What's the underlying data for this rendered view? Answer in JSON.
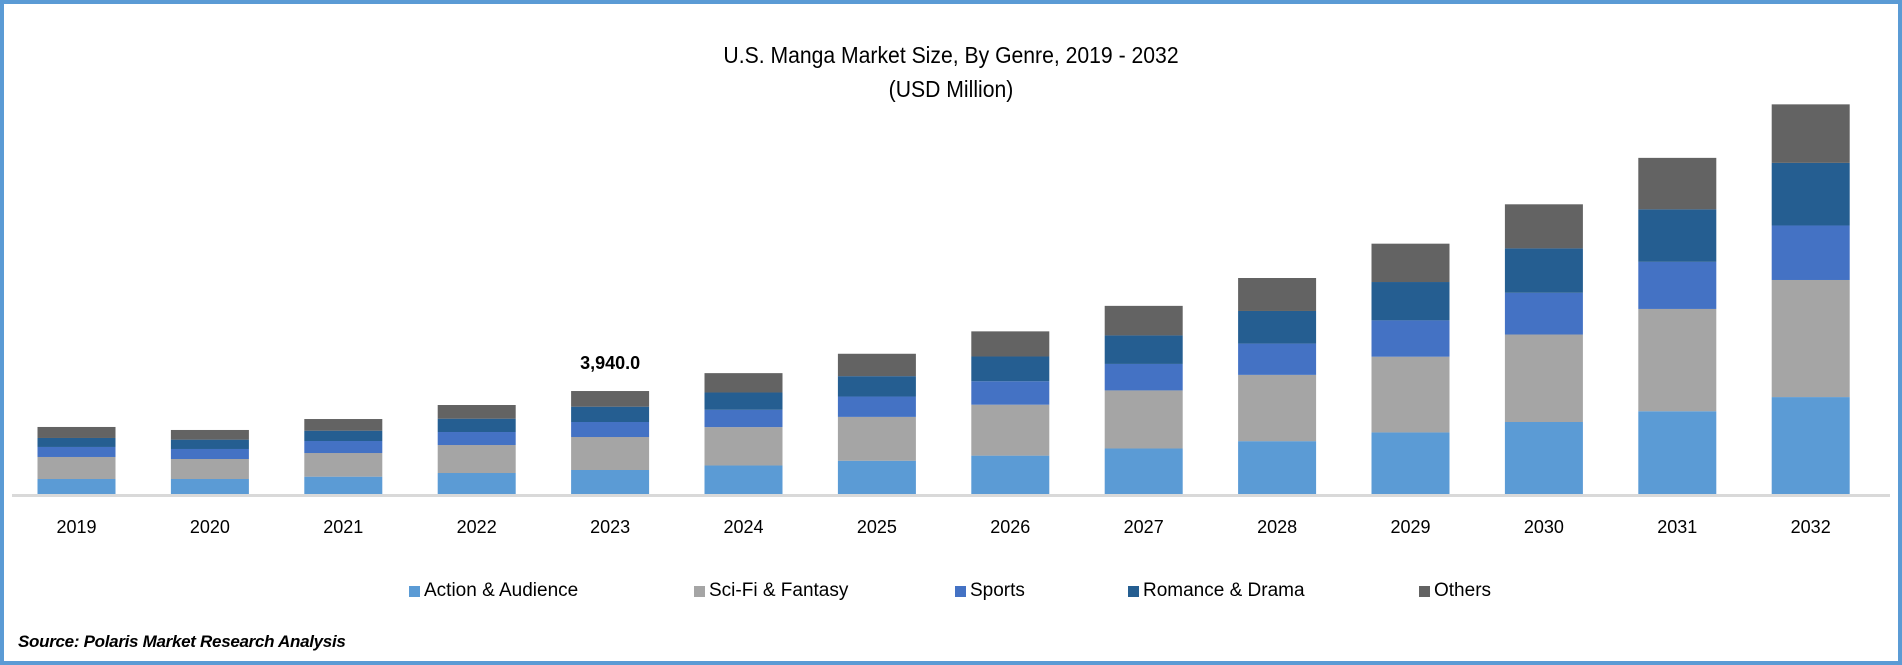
{
  "chart_data": {
    "type": "bar",
    "stacked": true,
    "title": "U.S. Manga Market  Size, By Genre, 2019 - 2032",
    "subtitle": "(USD Million)",
    "xlabel": "",
    "ylabel": "",
    "grid": false,
    "legend_position": "bottom",
    "categories": [
      "2019",
      "2020",
      "2021",
      "2022",
      "2023",
      "2024",
      "2025",
      "2026",
      "2027",
      "2028",
      "2029",
      "2030",
      "2031",
      "2032"
    ],
    "series": [
      {
        "name": "Action & Audience",
        "color": "#5b9bd5",
        "values": [
          574,
          574,
          663,
          803,
          918,
          1091,
          1273,
          1468,
          1741,
          2021,
          2355,
          2754,
          3166,
          3707
        ]
      },
      {
        "name": "Sci-Fi & Fantasy",
        "color": "#a5a5a5",
        "values": [
          842,
          765,
          905,
          1071,
          1262,
          1468,
          1676,
          1948,
          2221,
          2535,
          2896,
          3346,
          3912,
          4479
        ]
      },
      {
        "name": "Sports",
        "color": "#4472c4",
        "values": [
          383,
          383,
          459,
          497,
          574,
          662,
          779,
          896,
          1013,
          1197,
          1390,
          1596,
          1802,
          2085
        ]
      },
      {
        "name": "Romance & Drama",
        "color": "#255e91",
        "values": [
          344,
          357,
          395,
          510,
          586,
          662,
          779,
          948,
          1091,
          1248,
          1467,
          1699,
          2008,
          2394
        ]
      },
      {
        "name": "Others",
        "color": "#636363",
        "values": [
          421,
          370,
          446,
          523,
          599,
          740,
          857,
          961,
          1130,
          1261,
          1467,
          1686,
          1969,
          2239
        ]
      }
    ],
    "annotations": [
      {
        "category": "2023",
        "text": "3,940.0"
      }
    ],
    "source": "Source: Polaris Market Research Analysis"
  }
}
